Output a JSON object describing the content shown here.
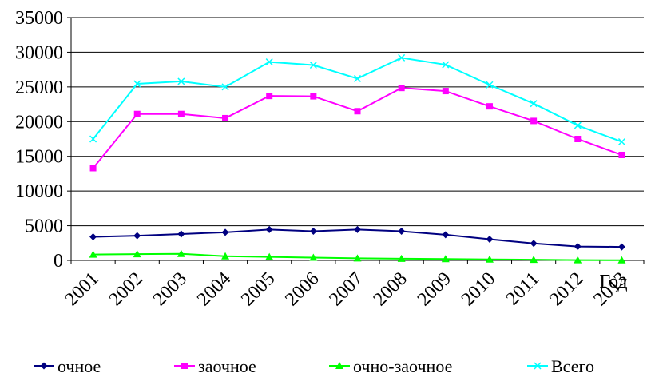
{
  "chart_data": {
    "type": "line",
    "title": "",
    "xlabel": "Год",
    "ylabel": "",
    "categories": [
      "2001",
      "2002",
      "2003",
      "2004",
      "2005",
      "2006",
      "2007",
      "2008",
      "2009",
      "2010",
      "2011",
      "2012",
      "2013"
    ],
    "ylim": [
      0,
      35000
    ],
    "yticks": [
      0,
      5000,
      10000,
      15000,
      20000,
      25000,
      30000,
      35000
    ],
    "grid": true,
    "legend_position": "bottom",
    "series": [
      {
        "name": "очное",
        "color": "#000080",
        "marker": "diamond",
        "values": [
          3400,
          3550,
          3800,
          4050,
          4450,
          4200,
          4450,
          4200,
          3700,
          3050,
          2450,
          2000,
          1950
        ]
      },
      {
        "name": "заочное",
        "color": "#ff00ff",
        "marker": "square",
        "values": [
          13300,
          21100,
          21100,
          20500,
          23700,
          23650,
          21500,
          24850,
          24400,
          22200,
          20100,
          17500,
          15200
        ]
      },
      {
        "name": "очно-заочное",
        "color": "#00ff00",
        "marker": "triangle",
        "values": [
          850,
          900,
          950,
          600,
          500,
          400,
          300,
          250,
          200,
          150,
          100,
          50,
          30
        ]
      },
      {
        "name": "Всего",
        "color": "#00ffff",
        "marker": "x",
        "values": [
          17500,
          25450,
          25800,
          25000,
          28600,
          28150,
          26200,
          29200,
          28200,
          25300,
          22600,
          19450,
          17100
        ]
      }
    ]
  }
}
